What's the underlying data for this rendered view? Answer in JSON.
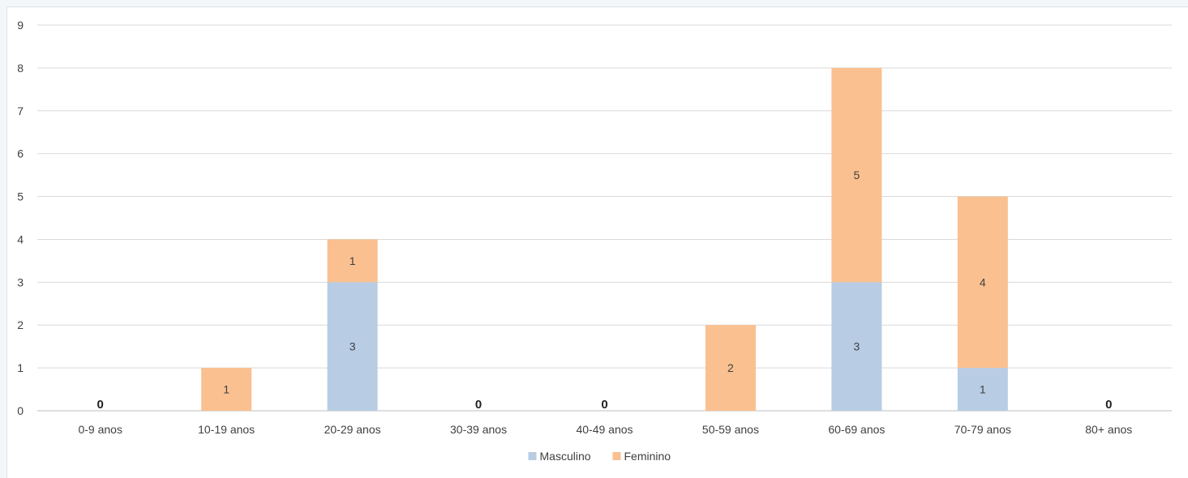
{
  "chart_data": {
    "type": "bar",
    "stacked": true,
    "categories": [
      "0-9 anos",
      "10-19 anos",
      "20-29 anos",
      "30-39 anos",
      "40-49 anos",
      "50-59 anos",
      "60-69 anos",
      "70-79 anos",
      "80+ anos"
    ],
    "series": [
      {
        "name": "Masculino",
        "color": "#b8cce4",
        "values": [
          0,
          0,
          3,
          0,
          0,
          0,
          3,
          1,
          0
        ]
      },
      {
        "name": "Feminino",
        "color": "#fac090",
        "values": [
          0,
          1,
          1,
          0,
          0,
          2,
          5,
          4,
          0
        ]
      }
    ],
    "total_labels": [
      "0",
      "",
      "",
      "0",
      "0",
      "",
      "",
      "",
      "0"
    ],
    "ylim": [
      0,
      9
    ],
    "yticks": [
      "0",
      "1",
      "2",
      "3",
      "4",
      "5",
      "6",
      "7",
      "8",
      "9"
    ],
    "grid": true,
    "legend_position": "bottom",
    "title": "",
    "xlabel": "",
    "ylabel": ""
  }
}
